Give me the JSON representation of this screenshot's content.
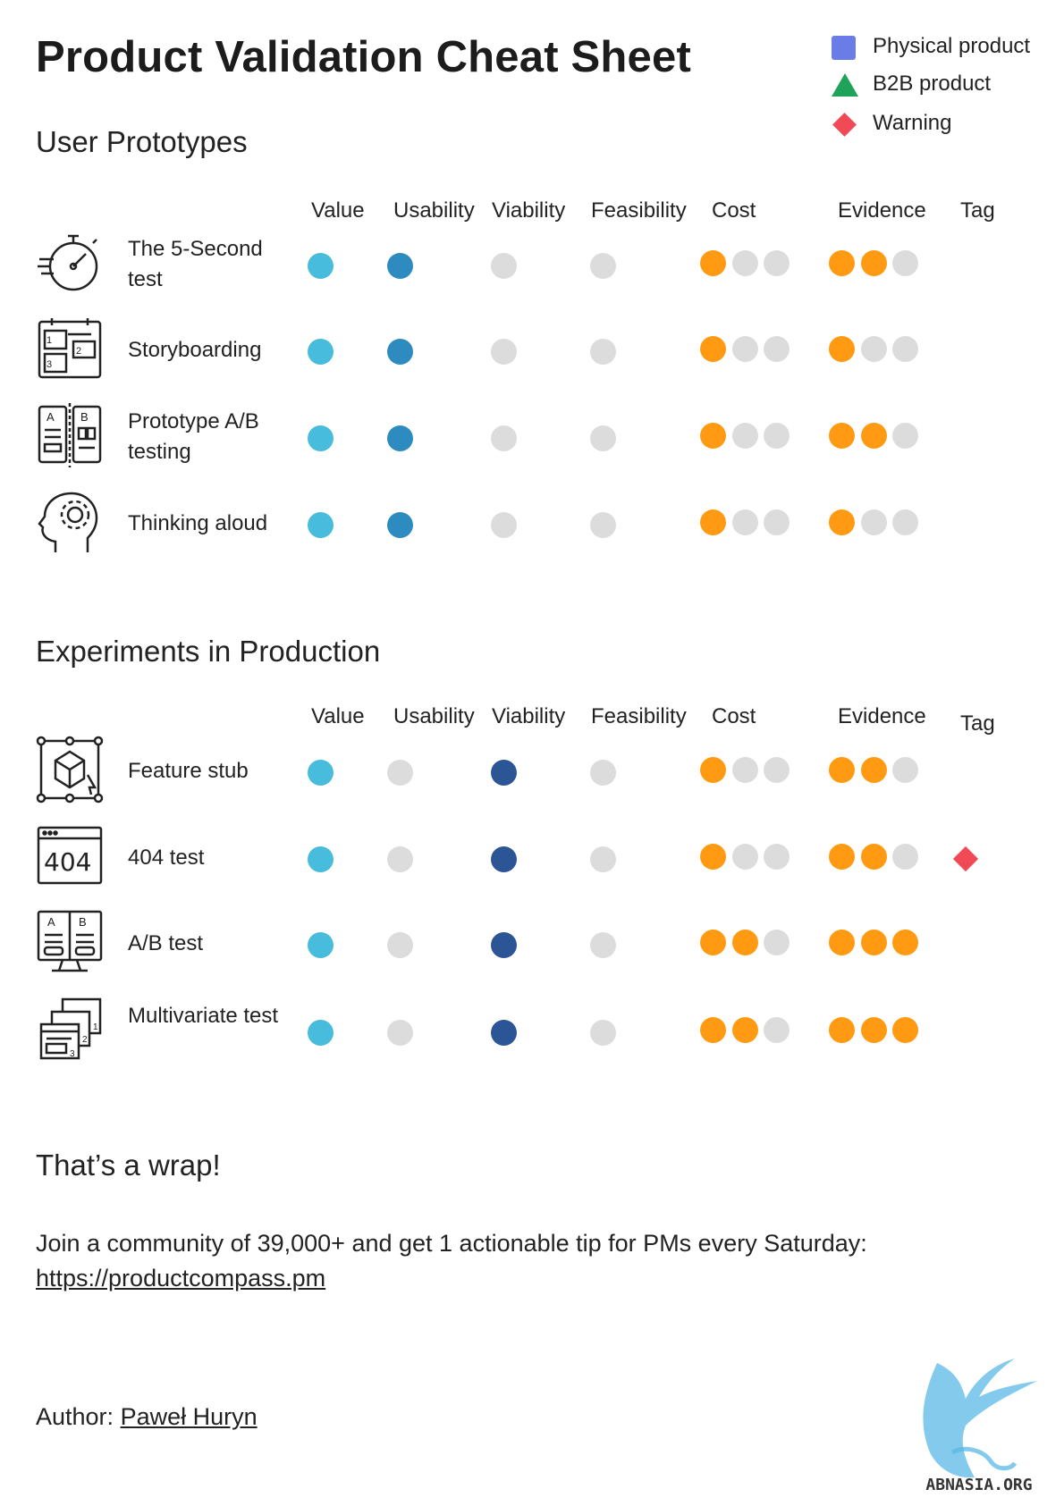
{
  "title": "Product Validation Cheat Sheet",
  "legend": [
    {
      "shape": "square",
      "color": "#6a7de6",
      "label": "Physical product"
    },
    {
      "shape": "triangle",
      "color": "#1fa35a",
      "label": "B2B product"
    },
    {
      "shape": "diamond",
      "color": "#ef4a55",
      "label": "Warning"
    }
  ],
  "colors": {
    "value": "#48bcdc",
    "usability": "#2e8bbf",
    "viability": "#2c5595",
    "off": "#dcdcdc",
    "on": "#ff9a12"
  },
  "columns": [
    "Value",
    "Usability",
    "Viability",
    "Feasibility",
    "Cost",
    "Evidence",
    "Tag"
  ],
  "sections": [
    {
      "title": "User Prototypes",
      "rows": [
        {
          "name": "The 5-Second test",
          "icon": "stopwatch-icon",
          "value": true,
          "usability": true,
          "viability": false,
          "feasibility": false,
          "cost": 1,
          "evidence": 2,
          "tag": ""
        },
        {
          "name": "Storyboarding",
          "icon": "storyboard-icon",
          "value": true,
          "usability": true,
          "viability": false,
          "feasibility": false,
          "cost": 1,
          "evidence": 1,
          "tag": ""
        },
        {
          "name": "Prototype A/B testing",
          "icon": "ab-prototype-icon",
          "value": true,
          "usability": true,
          "viability": false,
          "feasibility": false,
          "cost": 1,
          "evidence": 2,
          "tag": ""
        },
        {
          "name": "Thinking aloud",
          "icon": "head-gear-icon",
          "value": true,
          "usability": true,
          "viability": false,
          "feasibility": false,
          "cost": 1,
          "evidence": 1,
          "tag": ""
        }
      ]
    },
    {
      "title": "Experiments in Production",
      "rows": [
        {
          "name": "Feature stub",
          "icon": "cube-select-icon",
          "value": true,
          "usability": false,
          "viability": true,
          "feasibility": false,
          "cost": 1,
          "evidence": 2,
          "tag": ""
        },
        {
          "name": "404 test",
          "icon": "404-page-icon",
          "value": true,
          "usability": false,
          "viability": true,
          "feasibility": false,
          "cost": 1,
          "evidence": 2,
          "tag": "warning"
        },
        {
          "name": "A/B test",
          "icon": "ab-monitor-icon",
          "value": true,
          "usability": false,
          "viability": true,
          "feasibility": false,
          "cost": 2,
          "evidence": 3,
          "tag": ""
        },
        {
          "name": "Multivariate test",
          "icon": "multi-window-icon",
          "value": true,
          "usability": false,
          "viability": true,
          "feasibility": false,
          "cost": 2,
          "evidence": 3,
          "tag": ""
        }
      ]
    }
  ],
  "wrap": {
    "title": "That’s a wrap!",
    "text": "Join a community of 39,000+ and get 1 actionable tip for PMs every Saturday:",
    "link": "https://productcompass.pm"
  },
  "author": {
    "prefix": "Author: ",
    "name": "Paweł Huryn"
  },
  "watermark": "ABNASIA.ORG"
}
